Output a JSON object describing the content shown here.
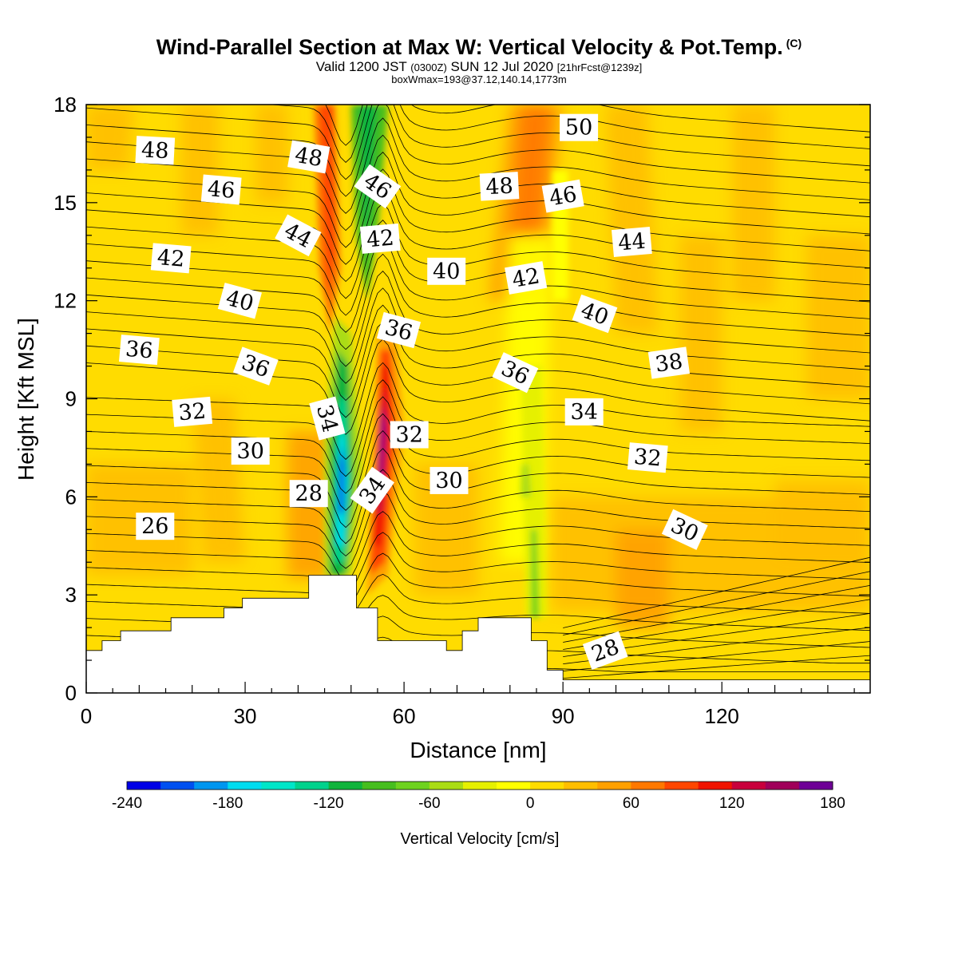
{
  "title": {
    "main": "Wind-Parallel Section at Max W: Vertical Velocity & Pot.Temp.",
    "copyright": "(C)",
    "valid_prefix": "Valid 1200 JST",
    "valid_utc": "(0300Z)",
    "valid_date": "SUN 12 Jul 2020",
    "forecast": "[21hrFcst@1239z]",
    "box_info": "boxWmax=193@37.12,140.14,1773m"
  },
  "chart_data": {
    "type": "heatmap",
    "xlabel": "Distance [nm]",
    "ylabel": "Height [Kft MSL]",
    "xlim": [
      0,
      148
    ],
    "ylim": [
      0,
      18
    ],
    "x_ticks": [
      0,
      30,
      60,
      90,
      120
    ],
    "y_ticks": [
      0,
      3,
      6,
      9,
      12,
      15,
      18
    ],
    "colorbar": {
      "title": "Vertical Velocity [cm/s]",
      "levels": [
        -240,
        -220,
        -200,
        -180,
        -160,
        -140,
        -120,
        -100,
        -80,
        -60,
        -40,
        -20,
        0,
        20,
        40,
        60,
        80,
        100,
        120,
        140,
        160,
        180
      ],
      "tick_labels": [
        "-240",
        "-180",
        "-120",
        "-60",
        "0",
        "60",
        "120",
        "180"
      ],
      "tick_values": [
        -240,
        -180,
        -120,
        -60,
        0,
        60,
        120,
        180
      ],
      "colors": [
        "#0000e6",
        "#0050f0",
        "#0096f0",
        "#00dcf0",
        "#00e6c8",
        "#00d28c",
        "#10b43c",
        "#46be1e",
        "#6ed21e",
        "#aadc14",
        "#e6f000",
        "#ffff00",
        "#ffdc00",
        "#ffbe00",
        "#ffa000",
        "#ff7800",
        "#ff4600",
        "#f01400",
        "#c8003c",
        "#a0005a",
        "#6e0096"
      ]
    },
    "terrain": [
      [
        0,
        1.3
      ],
      [
        3,
        1.3
      ],
      [
        3,
        1.6
      ],
      [
        6.5,
        1.6
      ],
      [
        6.5,
        1.9
      ],
      [
        16,
        1.9
      ],
      [
        16,
        2.3
      ],
      [
        26,
        2.3
      ],
      [
        26,
        2.6
      ],
      [
        29.5,
        2.6
      ],
      [
        29.5,
        2.9
      ],
      [
        42,
        2.9
      ],
      [
        42,
        3.6
      ],
      [
        51,
        3.6
      ],
      [
        51,
        2.6
      ],
      [
        55,
        2.6
      ],
      [
        55,
        1.6
      ],
      [
        68,
        1.6
      ],
      [
        68,
        1.3
      ],
      [
        71,
        1.3
      ],
      [
        71,
        1.9
      ],
      [
        74,
        1.9
      ],
      [
        74,
        2.3
      ],
      [
        84,
        2.3
      ],
      [
        84,
        1.6
      ],
      [
        87,
        1.6
      ],
      [
        87,
        0.7
      ],
      [
        90,
        0.7
      ],
      [
        90,
        0.4
      ],
      [
        148,
        0.4
      ]
    ],
    "theta_contour_labels": [
      {
        "value": "48",
        "x": 13,
        "y": 16.6,
        "angle": 3
      },
      {
        "value": "48",
        "x": 42,
        "y": 16.4,
        "angle": 10
      },
      {
        "value": "46",
        "x": 25.5,
        "y": 15.4,
        "angle": 5
      },
      {
        "value": "46",
        "x": 55,
        "y": 15.5,
        "angle": 35
      },
      {
        "value": "48",
        "x": 78,
        "y": 15.5,
        "angle": -3
      },
      {
        "value": "50",
        "x": 93,
        "y": 17.3,
        "angle": 0
      },
      {
        "value": "46",
        "x": 90,
        "y": 15.2,
        "angle": -10
      },
      {
        "value": "44",
        "x": 40,
        "y": 14,
        "angle": 28
      },
      {
        "value": "42",
        "x": 55.5,
        "y": 13.9,
        "angle": -5
      },
      {
        "value": "44",
        "x": 103,
        "y": 13.8,
        "angle": -5
      },
      {
        "value": "42",
        "x": 16,
        "y": 13.3,
        "angle": 5
      },
      {
        "value": "40",
        "x": 68,
        "y": 12.9,
        "angle": 0
      },
      {
        "value": "42",
        "x": 83,
        "y": 12.7,
        "angle": -10
      },
      {
        "value": "40",
        "x": 29,
        "y": 12,
        "angle": 15
      },
      {
        "value": "40",
        "x": 96,
        "y": 11.6,
        "angle": 20
      },
      {
        "value": "36",
        "x": 59,
        "y": 11.1,
        "angle": 15
      },
      {
        "value": "36",
        "x": 10,
        "y": 10.5,
        "angle": 5
      },
      {
        "value": "38",
        "x": 110,
        "y": 10.1,
        "angle": -8
      },
      {
        "value": "36",
        "x": 32,
        "y": 10,
        "angle": 20
      },
      {
        "value": "36",
        "x": 81,
        "y": 9.8,
        "angle": 25
      },
      {
        "value": "34",
        "x": 45.5,
        "y": 8.4,
        "angle": 75
      },
      {
        "value": "32",
        "x": 20,
        "y": 8.6,
        "angle": -5
      },
      {
        "value": "34",
        "x": 94,
        "y": 8.6,
        "angle": 0
      },
      {
        "value": "32",
        "x": 61,
        "y": 7.9,
        "angle": 0
      },
      {
        "value": "30",
        "x": 31,
        "y": 7.4,
        "angle": 0
      },
      {
        "value": "32",
        "x": 106,
        "y": 7.2,
        "angle": 5
      },
      {
        "value": "30",
        "x": 68.5,
        "y": 6.5,
        "angle": 0
      },
      {
        "value": "28",
        "x": 42,
        "y": 6.1,
        "angle": 0
      },
      {
        "value": "34",
        "x": 54,
        "y": 6.2,
        "angle": -55
      },
      {
        "value": "30",
        "x": 113,
        "y": 5,
        "angle": 25
      },
      {
        "value": "26",
        "x": 13,
        "y": 5.1,
        "angle": 0
      },
      {
        "value": "28",
        "x": 98,
        "y": 1.3,
        "angle": -20
      }
    ]
  }
}
